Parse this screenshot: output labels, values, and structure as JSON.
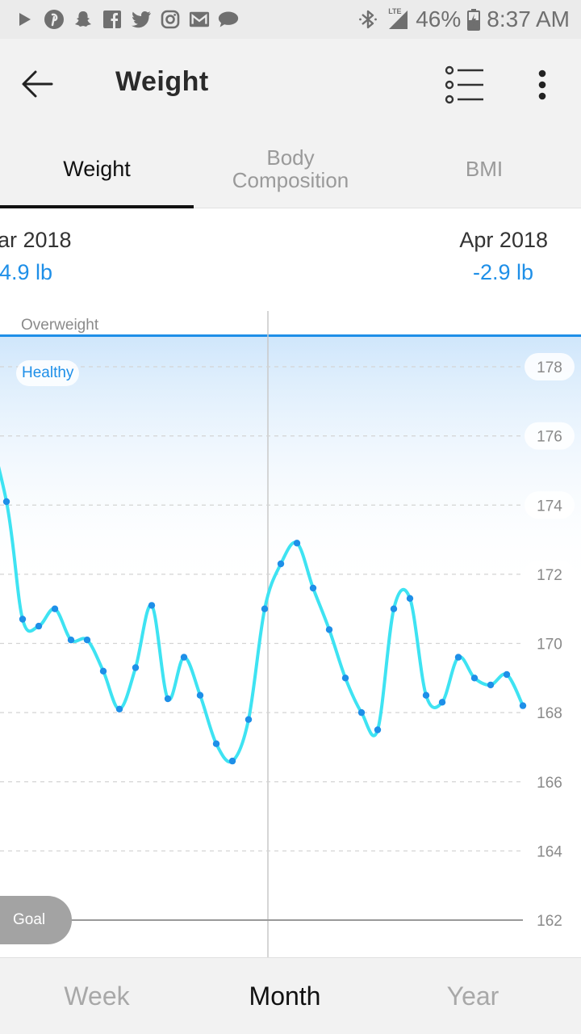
{
  "status_bar": {
    "left_icons": [
      "play-icon",
      "pinterest-icon",
      "snapchat-icon",
      "facebook-icon",
      "twitter-icon",
      "instagram-icon",
      "gmail-icon",
      "chat-bubble-icon"
    ],
    "network_label": "LTE",
    "battery": "46%",
    "time": "8:37 AM"
  },
  "app_bar": {
    "title": "Weight",
    "icons": [
      "back-arrow-icon",
      "list-view-icon",
      "more-vert-icon"
    ]
  },
  "tabs": [
    {
      "label": "Weight",
      "active": true
    },
    {
      "label": "Body\nComposition",
      "active": false
    },
    {
      "label": "BMI",
      "active": false
    }
  ],
  "periods": {
    "left": {
      "label": "ar 2018",
      "delta": "-4.9 lb"
    },
    "right": {
      "label": "Apr 2018",
      "delta": "-2.9 lb"
    }
  },
  "chart_data": {
    "type": "line",
    "zone_labels": {
      "above": "Overweight",
      "current": "Healthy"
    },
    "goal_label": "Goal",
    "goal_value": 162,
    "healthy_upper": 178.9,
    "y_ticks": [
      178,
      176,
      174,
      172,
      170,
      168,
      166,
      164,
      162
    ],
    "ylim": [
      161.0,
      181.5
    ],
    "grid": true,
    "accent_color": "#1e8fe8",
    "line_color": "#3ee3f2",
    "series": [
      {
        "values": [
          174.1,
          170.7,
          170.5,
          171.0,
          170.1,
          170.1,
          169.2,
          168.1,
          169.3,
          171.1,
          168.4,
          169.6,
          168.5,
          167.1,
          166.6,
          167.8,
          171.0,
          172.3,
          172.9,
          171.6,
          170.4,
          169.0,
          168.0,
          167.5,
          171.0,
          171.3,
          168.5,
          168.3,
          169.6,
          169.0,
          168.8,
          169.1,
          168.2
        ]
      }
    ]
  },
  "range_tabs": [
    {
      "label": "Week",
      "active": false
    },
    {
      "label": "Month",
      "active": true
    },
    {
      "label": "Year",
      "active": false
    }
  ]
}
